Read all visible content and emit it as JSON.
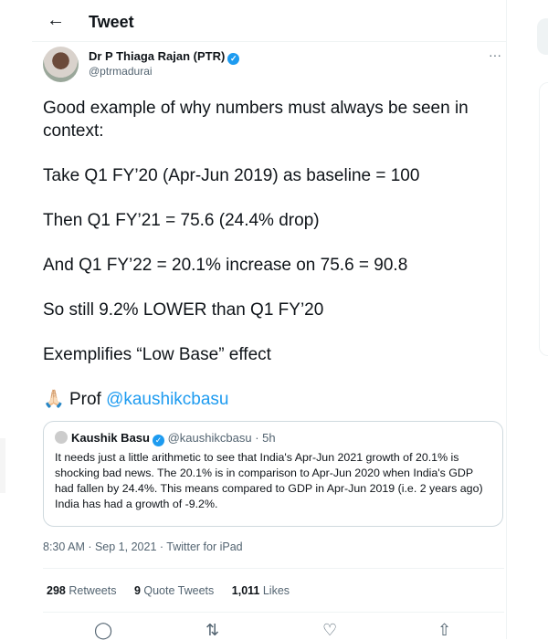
{
  "header": {
    "title": "Tweet",
    "back_icon": "arrow-left-icon"
  },
  "tweet": {
    "author_name": "Dr P Thiaga Rajan (PTR)",
    "handle": "@ptrmadurai",
    "verified": true,
    "paragraphs": [
      "Good example of why numbers must always be seen in context:",
      "Take Q1 FY’20 (Apr-Jun 2019) as baseline = 100",
      "Then Q1 FY’21 = 75.6 (24.4% drop)",
      "And Q1 FY’22 = 20.1% increase on 75.6 = 90.8",
      "So still 9.2% LOWER than Q1 FY’20",
      "Exemplifies “Low Base” effect"
    ],
    "last_line": {
      "emoji": "🙏🏻",
      "prefix": "Prof ",
      "mention": "@kaushikcbasu"
    },
    "quote": {
      "author_name": "Kaushik Basu",
      "handle": "@kaushikcbasu",
      "age": "· 5h",
      "text": "It needs just a little arithmetic to see that India's Apr-Jun 2021 growth of 20.1% is shocking bad news. The 20.1% is in comparison to Apr-Jun 2020 when India's GDP had fallen by 24.4%. This means compared to GDP in Apr-Jun 2019 (i.e. 2 years ago) India has had a growth of -9.2%."
    },
    "timestamp": "8:30 AM · Sep 1, 2021 · Twitter for iPad",
    "stats": {
      "retweets": "298",
      "retweets_label": "Retweets",
      "quotes": "9",
      "quotes_label": "Quote Tweets",
      "likes": "1,011",
      "likes_label": "Likes"
    }
  },
  "colors": {
    "accent": "#1d9bf0",
    "text": "#0f1419",
    "muted": "#536471"
  }
}
